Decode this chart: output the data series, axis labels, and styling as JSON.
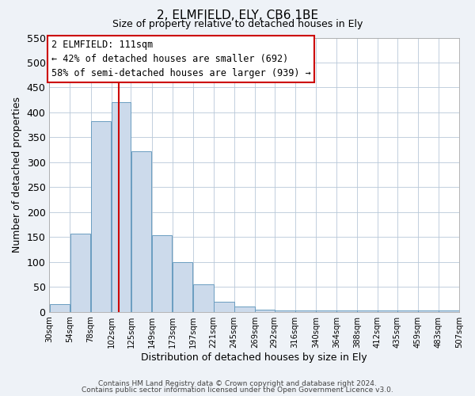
{
  "title": "2, ELMFIELD, ELY, CB6 1BE",
  "subtitle": "Size of property relative to detached houses in Ely",
  "xlabel": "Distribution of detached houses by size in Ely",
  "ylabel": "Number of detached properties",
  "bar_left_edges": [
    30,
    54,
    78,
    102,
    125,
    149,
    173,
    197,
    221,
    245,
    269,
    292,
    316,
    340,
    364,
    388,
    412,
    435,
    459,
    483
  ],
  "bar_widths": [
    24,
    24,
    24,
    23,
    24,
    24,
    24,
    24,
    24,
    24,
    23,
    24,
    24,
    24,
    24,
    24,
    23,
    24,
    24,
    24
  ],
  "bar_heights": [
    15,
    157,
    383,
    420,
    322,
    153,
    100,
    55,
    20,
    10,
    5,
    3,
    3,
    3,
    2,
    2,
    2,
    2,
    2,
    2
  ],
  "tick_labels": [
    "30sqm",
    "54sqm",
    "78sqm",
    "102sqm",
    "125sqm",
    "149sqm",
    "173sqm",
    "197sqm",
    "221sqm",
    "245sqm",
    "269sqm",
    "292sqm",
    "316sqm",
    "340sqm",
    "364sqm",
    "388sqm",
    "412sqm",
    "435sqm",
    "459sqm",
    "483sqm",
    "507sqm"
  ],
  "bar_color": "#ccdaeb",
  "bar_edge_color": "#6a9dc0",
  "vline_x": 111,
  "vline_color": "#cc0000",
  "ylim": [
    0,
    550
  ],
  "yticks": [
    0,
    50,
    100,
    150,
    200,
    250,
    300,
    350,
    400,
    450,
    500,
    550
  ],
  "annotation_box_title": "2 ELMFIELD: 111sqm",
  "annotation_line1": "← 42% of detached houses are smaller (692)",
  "annotation_line2": "58% of semi-detached houses are larger (939) →",
  "annotation_box_color": "#cc0000",
  "footer_line1": "Contains HM Land Registry data © Crown copyright and database right 2024.",
  "footer_line2": "Contains public sector information licensed under the Open Government Licence v3.0.",
  "background_color": "#eef2f7",
  "plot_bg_color": "#ffffff",
  "grid_color": "#b8c8d8"
}
